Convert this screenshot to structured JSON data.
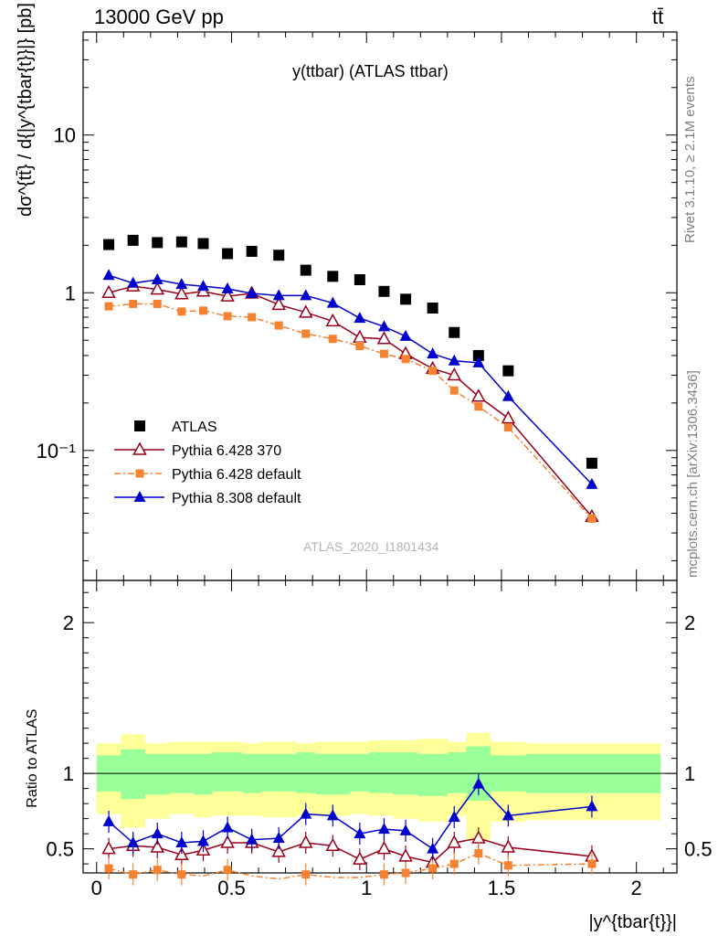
{
  "header": {
    "left": "13000 GeV pp",
    "right": "tt̄"
  },
  "side_text": {
    "rivet": "Rivet 3.1.10, ≥ 2.1M events",
    "mcplots": "mcplots.cern.ch [arXiv:1306.3436]"
  },
  "watermark": "ATLAS_2020_I1801434",
  "colors": {
    "atlas": "#000000",
    "py6_370": "#99001a",
    "py6_default": "#f58231",
    "py8": "#0000cc",
    "band_inner": "#99ff99",
    "band_outer": "#ffff99",
    "watermark": "#b3b3b3"
  },
  "chart_data": [
    {
      "type": "scatter",
      "title": "y(ttbar) (ATLAS ttbar)",
      "xlabel": "|y^{tbar{t}}|",
      "ylabel": "dσ^{tt̄} / d{|y^{tbar{t}}|} [pb]",
      "yscale": "log",
      "xlim": [
        -0.05,
        2.15
      ],
      "ylim": [
        0.015,
        45
      ],
      "yticks": [
        {
          "v": 0.1,
          "label": "10⁻¹"
        },
        {
          "v": 1,
          "label": "1"
        },
        {
          "v": 10,
          "label": "10"
        }
      ],
      "x": [
        0.045,
        0.135,
        0.225,
        0.315,
        0.395,
        0.485,
        0.575,
        0.675,
        0.775,
        0.875,
        0.975,
        1.065,
        1.145,
        1.245,
        1.325,
        1.415,
        1.525,
        1.835
      ],
      "series": [
        {
          "name": "ATLAS",
          "marker": "square",
          "values": [
            2.02,
            2.15,
            2.08,
            2.1,
            2.05,
            1.77,
            1.83,
            1.73,
            1.39,
            1.27,
            1.21,
            1.02,
            0.91,
            0.8,
            0.56,
            0.4,
            0.32,
            0.083
          ]
        },
        {
          "name": "Pythia 6.428 370",
          "marker": "open-triangle",
          "values": [
            1.0,
            1.1,
            1.05,
            0.98,
            1.02,
            0.95,
            0.99,
            0.84,
            0.75,
            0.66,
            0.52,
            0.51,
            0.41,
            0.33,
            0.3,
            0.22,
            0.16,
            0.038
          ]
        },
        {
          "name": "Pythia 6.428 default",
          "marker": "square-small",
          "dashed": true,
          "values": [
            0.82,
            0.85,
            0.85,
            0.76,
            0.77,
            0.71,
            0.7,
            0.62,
            0.55,
            0.51,
            0.46,
            0.41,
            0.38,
            0.32,
            0.24,
            0.19,
            0.14,
            0.037
          ]
        },
        {
          "name": "Pythia 8.308 default",
          "marker": "triangle",
          "values": [
            1.29,
            1.15,
            1.21,
            1.13,
            1.1,
            1.06,
            0.99,
            0.96,
            0.96,
            0.86,
            0.69,
            0.61,
            0.53,
            0.41,
            0.37,
            0.36,
            0.22,
            0.061
          ]
        }
      ]
    },
    {
      "type": "scatter",
      "ylabel": "Ratio to ATLAS",
      "xlabel": "|y^{tbar{t}}|",
      "xlim": [
        -0.05,
        2.15
      ],
      "ylim": [
        0.34,
        2.28
      ],
      "xticks": [
        0,
        0.5,
        1,
        1.5,
        2
      ],
      "yticks": [
        0.5,
        1,
        2
      ],
      "bin_edges": [
        0,
        0.09,
        0.18,
        0.27,
        0.36,
        0.43,
        0.54,
        0.61,
        0.74,
        0.81,
        0.94,
        1.01,
        1.1,
        1.19,
        1.3,
        1.37,
        1.46,
        1.59,
        2.09
      ],
      "band_inner": [
        [
          0.88,
          1.12
        ],
        [
          0.83,
          1.16
        ],
        [
          0.86,
          1.13
        ],
        [
          0.87,
          1.13
        ],
        [
          0.86,
          1.13
        ],
        [
          0.88,
          1.14
        ],
        [
          0.87,
          1.13
        ],
        [
          0.88,
          1.13
        ],
        [
          0.87,
          1.14
        ],
        [
          0.86,
          1.13
        ],
        [
          0.88,
          1.13
        ],
        [
          0.87,
          1.14
        ],
        [
          0.86,
          1.14
        ],
        [
          0.85,
          1.13
        ],
        [
          0.87,
          1.14
        ],
        [
          0.82,
          1.18
        ],
        [
          0.88,
          1.12
        ],
        [
          0.87,
          1.13
        ]
      ],
      "band_outer": [
        [
          0.73,
          1.2
        ],
        [
          0.64,
          1.26
        ],
        [
          0.7,
          1.2
        ],
        [
          0.73,
          1.21
        ],
        [
          0.71,
          1.21
        ],
        [
          0.72,
          1.21
        ],
        [
          0.72,
          1.2
        ],
        [
          0.71,
          1.21
        ],
        [
          0.72,
          1.2
        ],
        [
          0.72,
          1.21
        ],
        [
          0.73,
          1.21
        ],
        [
          0.72,
          1.22
        ],
        [
          0.7,
          1.22
        ],
        [
          0.68,
          1.23
        ],
        [
          0.72,
          1.21
        ],
        [
          0.56,
          1.27
        ],
        [
          0.68,
          1.21
        ],
        [
          0.69,
          1.2
        ]
      ],
      "series": [
        {
          "name": "Pythia 6.428 370",
          "values": [
            0.5,
            0.52,
            0.51,
            0.46,
            0.49,
            0.54,
            0.54,
            0.48,
            0.54,
            0.52,
            0.43,
            0.5,
            0.45,
            0.41,
            0.54,
            0.57,
            0.51,
            0.45
          ]
        },
        {
          "name": "Pythia 6.428 default",
          "values": [
            0.37,
            0.33,
            0.36,
            0.33,
            0.32,
            0.36,
            0.32,
            0.3,
            0.33,
            0.31,
            0.31,
            0.33,
            0.34,
            0.37,
            0.4,
            0.47,
            0.39,
            0.4
          ]
        },
        {
          "name": "Pythia 8.308 default",
          "values": [
            0.68,
            0.54,
            0.6,
            0.54,
            0.55,
            0.64,
            0.56,
            0.57,
            0.73,
            0.72,
            0.6,
            0.63,
            0.62,
            0.5,
            0.71,
            0.93,
            0.72,
            0.78
          ]
        }
      ]
    }
  ]
}
